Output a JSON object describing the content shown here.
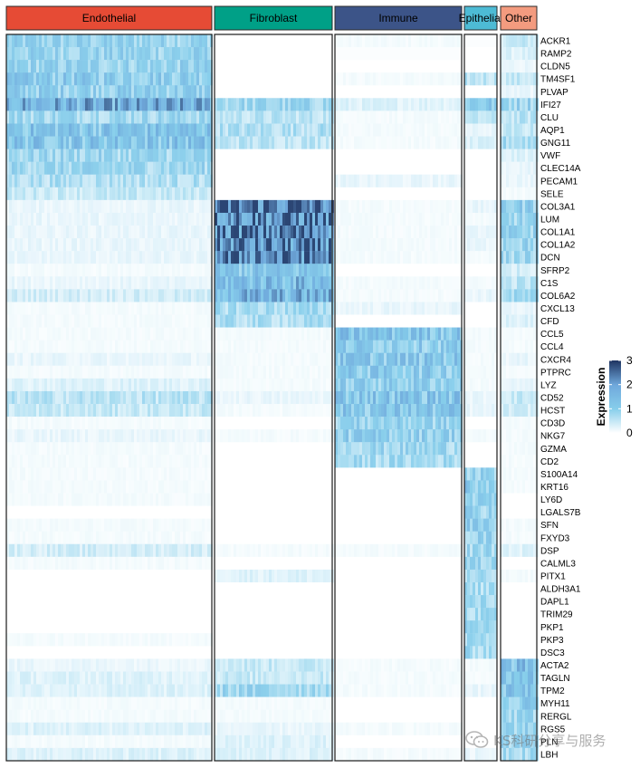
{
  "chart_data": {
    "type": "heatmap",
    "title": "",
    "groups": [
      "Endothelial",
      "Fibroblast",
      "Immune",
      "Epithelial",
      "Other"
    ],
    "group_colors": [
      "#e64b35",
      "#00a087",
      "#3c5488",
      "#4dbbd5",
      "#f39b7f"
    ],
    "genes": [
      "ACKR1",
      "RAMP2",
      "CLDN5",
      "TM4SF1",
      "PLVAP",
      "IFI27",
      "CLU",
      "AQP1",
      "GNG11",
      "VWF",
      "CLEC14A",
      "PECAM1",
      "SELE",
      "COL3A1",
      "LUM",
      "COL1A1",
      "COL1A2",
      "DCN",
      "SFRP2",
      "C1S",
      "COL6A2",
      "CXCL13",
      "CFD",
      "CCL5",
      "CCL4",
      "CXCR4",
      "PTPRC",
      "LYZ",
      "CD52",
      "HCST",
      "CD3D",
      "NKG7",
      "GZMA",
      "CD2",
      "S100A14",
      "KRT16",
      "LY6D",
      "LGALS7B",
      "SFN",
      "FXYD3",
      "DSP",
      "CALML3",
      "PITX1",
      "ALDH3A1",
      "DAPL1",
      "TRIM29",
      "PKP1",
      "PKP3",
      "DSC3",
      "ACTA2",
      "TAGLN",
      "TPM2",
      "MYH11",
      "RERGL",
      "RGS5",
      "PLN",
      "LBH"
    ],
    "group_mean_expression": [
      [
        1.0,
        0.0,
        0.1,
        0.05,
        0.5
      ],
      [
        1.0,
        0.0,
        0.05,
        0.0,
        0.3
      ],
      [
        1.0,
        0.0,
        0.0,
        0.0,
        0.2
      ],
      [
        1.2,
        0.0,
        0.1,
        0.6,
        0.5
      ],
      [
        1.1,
        0.0,
        0.0,
        0.0,
        0.2
      ],
      [
        1.8,
        0.9,
        0.3,
        1.2,
        1.0
      ],
      [
        0.9,
        0.6,
        0.1,
        0.5,
        0.6
      ],
      [
        1.4,
        0.7,
        0.1,
        0.2,
        0.5
      ],
      [
        1.4,
        0.6,
        0.1,
        0.3,
        0.8
      ],
      [
        0.9,
        0.0,
        0.0,
        0.0,
        0.3
      ],
      [
        0.9,
        0.0,
        0.0,
        0.0,
        0.2
      ],
      [
        0.7,
        0.0,
        0.2,
        0.0,
        0.2
      ],
      [
        0.5,
        0.0,
        0.0,
        0.0,
        0.1
      ],
      [
        0.2,
        2.6,
        0.1,
        0.2,
        1.1
      ],
      [
        0.2,
        2.4,
        0.1,
        0.1,
        0.9
      ],
      [
        0.2,
        2.5,
        0.1,
        0.2,
        1.0
      ],
      [
        0.2,
        2.3,
        0.1,
        0.2,
        1.0
      ],
      [
        0.2,
        2.5,
        0.1,
        0.1,
        0.9
      ],
      [
        0.1,
        1.3,
        0.0,
        0.0,
        0.4
      ],
      [
        0.2,
        1.6,
        0.1,
        0.1,
        0.6
      ],
      [
        0.4,
        1.7,
        0.1,
        0.2,
        0.8
      ],
      [
        0.1,
        0.8,
        0.2,
        0.0,
        0.2
      ],
      [
        0.1,
        0.7,
        0.0,
        0.0,
        0.3
      ],
      [
        0.1,
        0.1,
        1.4,
        0.1,
        0.1
      ],
      [
        0.1,
        0.1,
        1.2,
        0.1,
        0.1
      ],
      [
        0.2,
        0.1,
        1.3,
        0.1,
        0.2
      ],
      [
        0.1,
        0.1,
        1.2,
        0.1,
        0.1
      ],
      [
        0.3,
        0.1,
        1.1,
        0.1,
        0.2
      ],
      [
        0.6,
        0.2,
        1.4,
        0.2,
        0.5
      ],
      [
        0.5,
        0.1,
        1.3,
        0.2,
        0.4
      ],
      [
        0.1,
        0.0,
        1.0,
        0.0,
        0.1
      ],
      [
        0.2,
        0.1,
        1.1,
        0.1,
        0.1
      ],
      [
        0.1,
        0.0,
        0.9,
        0.0,
        0.1
      ],
      [
        0.1,
        0.0,
        0.8,
        0.0,
        0.1
      ],
      [
        0.1,
        0.0,
        0.0,
        1.0,
        0.1
      ],
      [
        0.1,
        0.0,
        0.0,
        1.3,
        0.1
      ],
      [
        0.1,
        0.0,
        0.0,
        1.1,
        0.0
      ],
      [
        0.0,
        0.0,
        0.0,
        1.0,
        0.0
      ],
      [
        0.1,
        0.0,
        0.0,
        1.1,
        0.1
      ],
      [
        0.1,
        0.0,
        0.0,
        1.0,
        0.1
      ],
      [
        0.4,
        0.1,
        0.1,
        0.9,
        0.3
      ],
      [
        0.1,
        0.0,
        0.0,
        0.9,
        0.0
      ],
      [
        0.0,
        0.3,
        0.0,
        0.7,
        0.1
      ],
      [
        0.0,
        0.0,
        0.0,
        0.8,
        0.0
      ],
      [
        0.0,
        0.0,
        0.0,
        0.8,
        0.0
      ],
      [
        0.0,
        0.0,
        0.0,
        0.8,
        0.0
      ],
      [
        0.0,
        0.0,
        0.0,
        0.9,
        0.0
      ],
      [
        0.1,
        0.0,
        0.0,
        0.8,
        0.0
      ],
      [
        0.0,
        0.0,
        0.0,
        0.8,
        0.0
      ],
      [
        0.2,
        0.5,
        0.1,
        0.1,
        1.5
      ],
      [
        0.3,
        0.5,
        0.1,
        0.1,
        1.4
      ],
      [
        0.3,
        0.9,
        0.1,
        0.2,
        1.3
      ],
      [
        0.1,
        0.1,
        0.0,
        0.0,
        1.2
      ],
      [
        0.1,
        0.1,
        0.0,
        0.0,
        0.9
      ],
      [
        0.3,
        0.2,
        0.1,
        0.0,
        1.0
      ],
      [
        0.1,
        0.3,
        0.0,
        0.0,
        0.9
      ],
      [
        0.3,
        0.3,
        0.1,
        0.2,
        0.9
      ]
    ],
    "legend": {
      "title": "Expression",
      "ticks": [
        "0",
        "1",
        "2",
        "3"
      ],
      "min": 0,
      "max": 3,
      "colors": [
        "#ffffff",
        "#87ceeb",
        "#6fa8dc",
        "#1f3461"
      ]
    }
  },
  "watermark": {
    "text": "KS科研分享与服务",
    "icon": "wechat-icon"
  }
}
